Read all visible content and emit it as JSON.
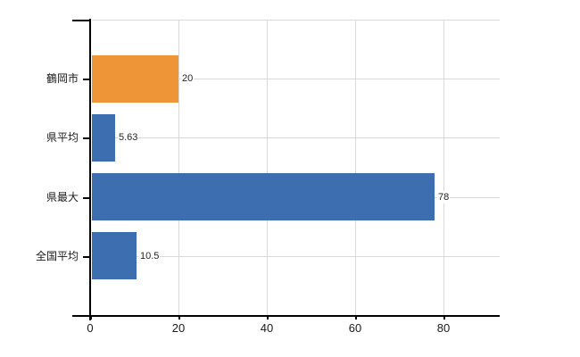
{
  "chart_data": {
    "type": "bar",
    "orientation": "horizontal",
    "title": "",
    "xlabel": "",
    "ylabel": "",
    "categories": [
      "鶴岡市",
      "県平均",
      "県最大",
      "全国平均"
    ],
    "values": [
      20,
      5.63,
      78,
      10.5
    ],
    "value_labels": [
      "20",
      "5.63",
      "78",
      "10.5"
    ],
    "bar_colors": [
      "#ee9538",
      "#3c6eb0",
      "#3c6eb0",
      "#3c6eb0"
    ],
    "x_ticks": [
      0,
      20,
      40,
      60,
      80
    ],
    "x_tick_labels": [
      "0",
      "20",
      "40",
      "60",
      "80"
    ],
    "xlim": [
      0,
      92.7
    ],
    "grid": true,
    "legend": false,
    "background": "#ffffff",
    "colors": {
      "highlight_bar": "#ee9538",
      "default_bar": "#3c6eb0",
      "gridline": "#d9d9d9",
      "axis": "#000000",
      "text": "#1a1a1a"
    }
  }
}
